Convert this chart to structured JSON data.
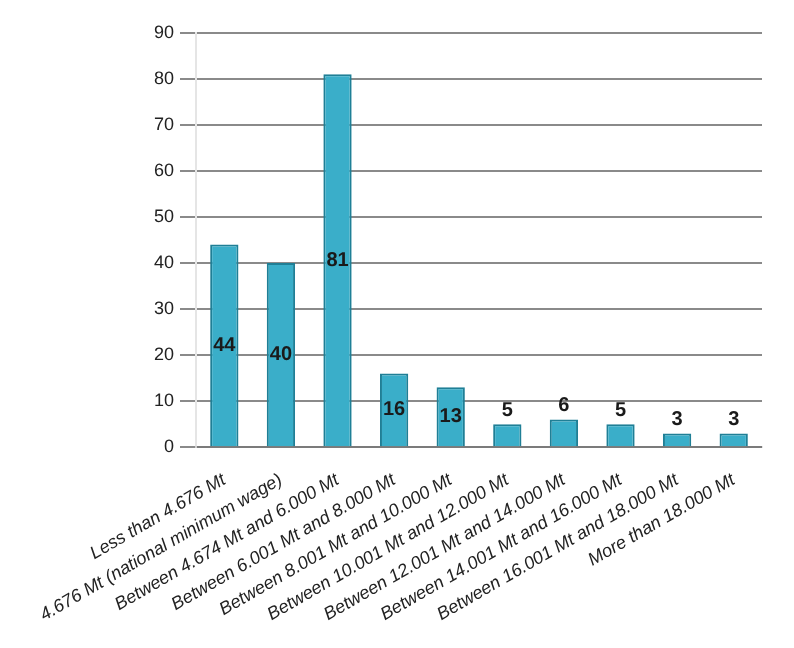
{
  "chart_data": {
    "type": "bar",
    "categories": [
      "Less than 4.676 Mt",
      "4.676 Mt (national minimum wage)",
      "Between 4.674 Mt and 6.000 Mt",
      "Between 6.001 Mt and 8.000 Mt",
      "Between 8.001 Mt and 10.000 Mt",
      "Between 10.001 Mt and 12.000 Mt",
      "Between 12.001 Mt and 14.000 Mt",
      "Between 14.001 Mt and 16.000 Mt",
      "Between 16.001 Mt and 18.000 Mt",
      "More than 18.000 Mt"
    ],
    "values": [
      44,
      40,
      81,
      16,
      13,
      5,
      6,
      5,
      3,
      3
    ],
    "color": "#3aaec9",
    "ylim": [
      0,
      90
    ],
    "yticks": [
      0,
      10,
      20,
      30,
      40,
      50,
      60,
      70,
      80,
      90
    ],
    "grid": "y",
    "data_labels": true
  }
}
